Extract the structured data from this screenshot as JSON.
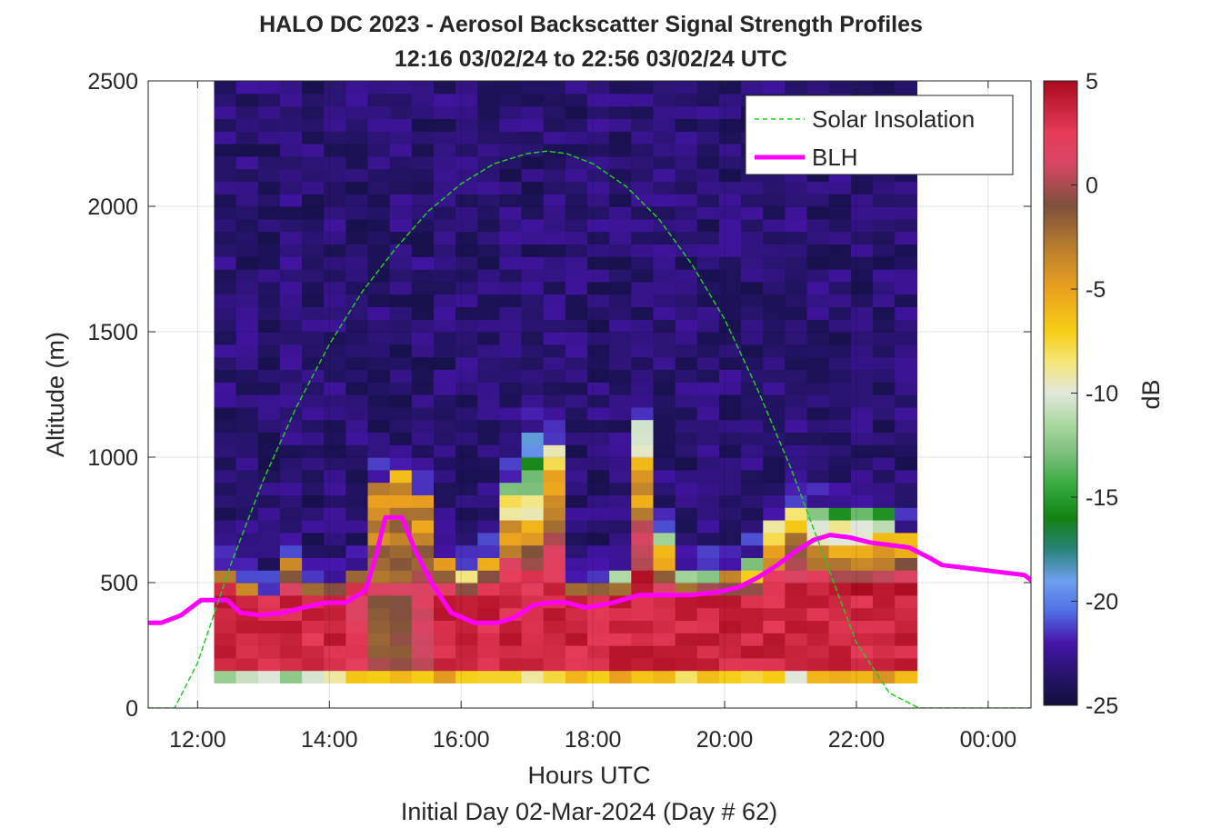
{
  "chart_data": {
    "type": "heatmap",
    "title": "HALO DC 2023 - Aerosol Backscatter Signal Strength Profiles",
    "subtitle": "12:16 03/02/24 to 22:56 03/02/24  UTC",
    "xlabel": "Hours UTC",
    "xlabel2": "Initial Day 02-Mar-2024 (Day # 62)",
    "ylabel": "Altitude (m)",
    "colorbar_label": "dB",
    "x_range_hours": [
      11.25,
      24.65
    ],
    "ylim": [
      0,
      2500
    ],
    "clim": [
      -25,
      5
    ],
    "x_ticks": [
      {
        "value": 12,
        "label": "12:00"
      },
      {
        "value": 14,
        "label": "14:00"
      },
      {
        "value": 16,
        "label": "16:00"
      },
      {
        "value": 18,
        "label": "18:00"
      },
      {
        "value": 20,
        "label": "20:00"
      },
      {
        "value": 22,
        "label": "22:00"
      },
      {
        "value": 24,
        "label": "00:00"
      }
    ],
    "y_ticks": [
      {
        "value": 0,
        "label": "0"
      },
      {
        "value": 500,
        "label": "500"
      },
      {
        "value": 1000,
        "label": "1000"
      },
      {
        "value": 1500,
        "label": "1500"
      },
      {
        "value": 2000,
        "label": "2000"
      },
      {
        "value": 2500,
        "label": "2500"
      }
    ],
    "colorbar_ticks": [
      {
        "value": 5,
        "label": "5"
      },
      {
        "value": 0,
        "label": "0"
      },
      {
        "value": -5,
        "label": "-5"
      },
      {
        "value": -10,
        "label": "-10"
      },
      {
        "value": -15,
        "label": "-15"
      },
      {
        "value": -20,
        "label": "-20"
      },
      {
        "value": -25,
        "label": "-25"
      }
    ],
    "grid": true,
    "legend_position": "top-right",
    "legend": [
      {
        "name": "Solar Insolation",
        "color": "#22cc22",
        "style": "dashed"
      },
      {
        "name": "BLH",
        "color": "#ff00ff",
        "style": "solid"
      }
    ],
    "heatmap": {
      "x_start_hour": 12.25,
      "x_step_hours": 0.3333,
      "columns": 32,
      "y_start_m": 100,
      "y_step_m": 50,
      "rows": 48,
      "description_note": "2D field of backscatter in dB; see column profiles below (values in dB, bottom to top)"
    },
    "column_profiles": [
      {
        "hour": 12.42,
        "bl_top_m": 560,
        "bottom_db": -12,
        "peak_db": 4.5,
        "tail_db": -7
      },
      {
        "hour": 12.75,
        "bl_top_m": 490,
        "bottom_db": -11,
        "peak_db": 4.5,
        "tail_db": -6
      },
      {
        "hour": 13.08,
        "bl_top_m": 450,
        "bottom_db": -10,
        "peak_db": 4.5,
        "tail_db": -5
      },
      {
        "hour": 13.42,
        "bl_top_m": 610,
        "bottom_db": -13,
        "peak_db": 4.5,
        "tail_db": -5
      },
      {
        "hour": 13.75,
        "bl_top_m": 490,
        "bottom_db": -9,
        "peak_db": 4.5,
        "tail_db": -4
      },
      {
        "hour": 14.08,
        "bl_top_m": 500,
        "bottom_db": -8,
        "peak_db": 4.5,
        "tail_db": -4
      },
      {
        "hour": 14.42,
        "bl_top_m": 560,
        "bottom_db": -7,
        "peak_db": 3,
        "tail_db": -4
      },
      {
        "hour": 14.75,
        "bl_top_m": 900,
        "bottom_db": -6,
        "peak_db": 0,
        "tail_db": -5
      },
      {
        "hour": 15.08,
        "bl_top_m": 950,
        "bottom_db": -6,
        "peak_db": 0,
        "tail_db": -5
      },
      {
        "hour": 15.42,
        "bl_top_m": 860,
        "bottom_db": -6,
        "peak_db": 2,
        "tail_db": -6
      },
      {
        "hour": 15.75,
        "bl_top_m": 590,
        "bottom_db": -6,
        "peak_db": 4.5,
        "tail_db": -7
      },
      {
        "hour": 16.08,
        "bl_top_m": 530,
        "bottom_db": -7,
        "peak_db": 4.5,
        "tail_db": -8
      },
      {
        "hour": 16.42,
        "bl_top_m": 590,
        "bottom_db": -7,
        "peak_db": 4.5,
        "tail_db": -9
      },
      {
        "hour": 16.75,
        "bl_top_m": 900,
        "bottom_db": -7,
        "peak_db": 4.5,
        "tail_db": -12
      },
      {
        "hour": 17.08,
        "bl_top_m": 1080,
        "bottom_db": -8,
        "peak_db": 4.5,
        "tail_db": -20
      },
      {
        "hour": 17.42,
        "bl_top_m": 1050,
        "bottom_db": -7,
        "peak_db": 4.5,
        "tail_db": -8
      },
      {
        "hour": 17.75,
        "bl_top_m": 500,
        "bottom_db": -6,
        "peak_db": 4.5,
        "tail_db": -6
      },
      {
        "hour": 18.08,
        "bl_top_m": 500,
        "bottom_db": -7,
        "peak_db": 4.5,
        "tail_db": -10
      },
      {
        "hour": 18.42,
        "bl_top_m": 530,
        "bottom_db": -6,
        "peak_db": 4.5,
        "tail_db": -11
      },
      {
        "hour": 18.75,
        "bl_top_m": 1150,
        "bottom_db": -6,
        "peak_db": 4.5,
        "tail_db": -11
      },
      {
        "hour": 19.08,
        "bl_top_m": 720,
        "bottom_db": -6,
        "peak_db": 4.5,
        "tail_db": -14
      },
      {
        "hour": 19.42,
        "bl_top_m": 530,
        "bottom_db": -7,
        "peak_db": 4.5,
        "tail_db": -14
      },
      {
        "hour": 19.75,
        "bl_top_m": 530,
        "bottom_db": -7,
        "peak_db": 4.5,
        "tail_db": -12
      },
      {
        "hour": 20.08,
        "bl_top_m": 530,
        "bottom_db": -6,
        "peak_db": 4.5,
        "tail_db": -6
      },
      {
        "hour": 20.42,
        "bl_top_m": 600,
        "bottom_db": -9,
        "peak_db": 4.5,
        "tail_db": -15
      },
      {
        "hour": 20.75,
        "bl_top_m": 750,
        "bottom_db": -8,
        "peak_db": 4.5,
        "tail_db": -11
      },
      {
        "hour": 21.08,
        "bl_top_m": 800,
        "bottom_db": -10,
        "peak_db": 4.5,
        "tail_db": -8
      },
      {
        "hour": 21.42,
        "bl_top_m": 780,
        "bottom_db": -6,
        "peak_db": 4.5,
        "tail_db": -14
      },
      {
        "hour": 21.75,
        "bl_top_m": 800,
        "bottom_db": -6,
        "peak_db": 4.5,
        "tail_db": -15
      },
      {
        "hour": 22.08,
        "bl_top_m": 800,
        "bottom_db": -6,
        "peak_db": 4.5,
        "tail_db": -15
      },
      {
        "hour": 22.42,
        "bl_top_m": 780,
        "bottom_db": -5,
        "peak_db": 4.5,
        "tail_db": -14
      },
      {
        "hour": 22.75,
        "bl_top_m": 720,
        "bottom_db": -5,
        "peak_db": 4.5,
        "tail_db": -8
      }
    ],
    "series": [
      {
        "name": "BLH",
        "x": [
          11.25,
          11.45,
          11.75,
          12.05,
          12.45,
          12.65,
          12.95,
          13.3,
          13.6,
          13.95,
          14.25,
          14.55,
          14.7,
          14.85,
          15.1,
          15.3,
          15.55,
          15.85,
          16.2,
          16.55,
          16.8,
          17.1,
          17.35,
          17.6,
          17.9,
          18.3,
          18.7,
          19.05,
          19.45,
          19.85,
          20.2,
          20.5,
          20.8,
          21.05,
          21.35,
          21.6,
          21.9,
          22.2,
          22.5,
          22.8,
          23.1,
          23.3,
          24.55,
          24.65
        ],
        "y": [
          340,
          340,
          370,
          430,
          430,
          380,
          370,
          380,
          400,
          420,
          420,
          470,
          600,
          760,
          760,
          630,
          500,
          380,
          340,
          340,
          360,
          410,
          420,
          420,
          400,
          420,
          450,
          450,
          450,
          460,
          480,
          520,
          570,
          620,
          670,
          690,
          680,
          660,
          650,
          640,
          600,
          570,
          530,
          510
        ]
      },
      {
        "name": "Solar Insolation",
        "x": [
          11.25,
          11.65,
          12.0,
          12.5,
          13.0,
          13.5,
          14.0,
          14.5,
          15.0,
          15.5,
          16.0,
          16.5,
          17.0,
          17.3,
          17.6,
          18.0,
          18.5,
          19.0,
          19.5,
          20.0,
          20.5,
          21.0,
          21.5,
          22.0,
          22.5,
          22.95,
          23.2,
          24.65
        ],
        "y": [
          0,
          0,
          180,
          570,
          910,
          1200,
          1450,
          1660,
          1830,
          1980,
          2090,
          2170,
          2210,
          2220,
          2210,
          2170,
          2080,
          1950,
          1770,
          1550,
          1270,
          960,
          610,
          260,
          60,
          0,
          0,
          0
        ]
      }
    ]
  }
}
